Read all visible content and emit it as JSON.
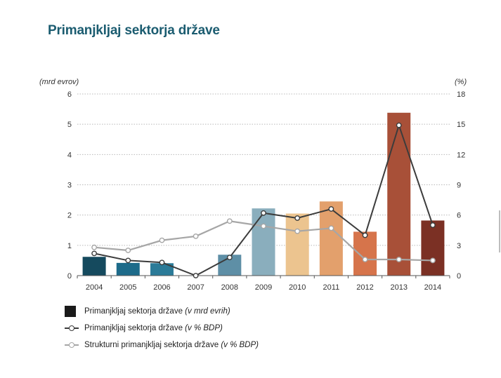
{
  "title": "Primanjkljaj sektorja države",
  "chart_data": {
    "type": "bar",
    "categories": [
      "2004",
      "2005",
      "2006",
      "2007",
      "2008",
      "2009",
      "2010",
      "2011",
      "2012",
      "2013",
      "2014"
    ],
    "left_axis": {
      "unit": "(mrd evrov)",
      "ylim": [
        0,
        6
      ],
      "ticks": [
        "0",
        "1",
        "2",
        "3",
        "4",
        "5",
        "6"
      ]
    },
    "right_axis": {
      "unit": "(%)",
      "ylim": [
        0,
        18
      ],
      "ticks": [
        "0",
        "3",
        "6",
        "9",
        "12",
        "15",
        "18"
      ]
    },
    "series": [
      {
        "name": "Primanjkljaj sektorja države",
        "name_suffix": "(v mrd evrih)",
        "type": "bar",
        "axis": "left",
        "values": [
          0.62,
          0.42,
          0.41,
          0.0,
          0.69,
          2.22,
          2.05,
          2.45,
          1.45,
          5.38,
          1.82
        ],
        "colors": [
          "#154a5e",
          "#1d6b8a",
          "#2b7b98",
          "#2f7f9c",
          "#5e8fa6",
          "#8aaebd",
          "#ecc48f",
          "#e3a06c",
          "#d6744b",
          "#a85038",
          "#7b3024"
        ]
      },
      {
        "name": "Primanjkljaj sektorja države",
        "name_suffix": "(v % BDP)",
        "type": "line",
        "axis": "right",
        "color": "#3c3c3c",
        "values": [
          2.2,
          1.5,
          1.3,
          0.0,
          1.8,
          6.2,
          5.7,
          6.6,
          4.0,
          14.9,
          5.0
        ]
      },
      {
        "name": "Strukturni primanjkljaj sektorja države",
        "name_suffix": "(v % BDP)",
        "type": "line",
        "axis": "right",
        "color": "#a6a6a6",
        "values": [
          2.8,
          2.5,
          3.5,
          3.9,
          5.4,
          4.9,
          4.4,
          4.7,
          1.6,
          1.6,
          1.5
        ]
      }
    ],
    "grid": true,
    "legend_placement": "bottom-left"
  },
  "legend": [
    {
      "label": "Primanjkljaj sektorja države",
      "suffix": "(v mrd evrih)"
    },
    {
      "label": "Primanjkljaj sektorja države",
      "suffix": "(v % BDP)"
    },
    {
      "label": "Strukturni primanjkljaj sektorja države",
      "suffix": "(v % BDP)"
    }
  ]
}
